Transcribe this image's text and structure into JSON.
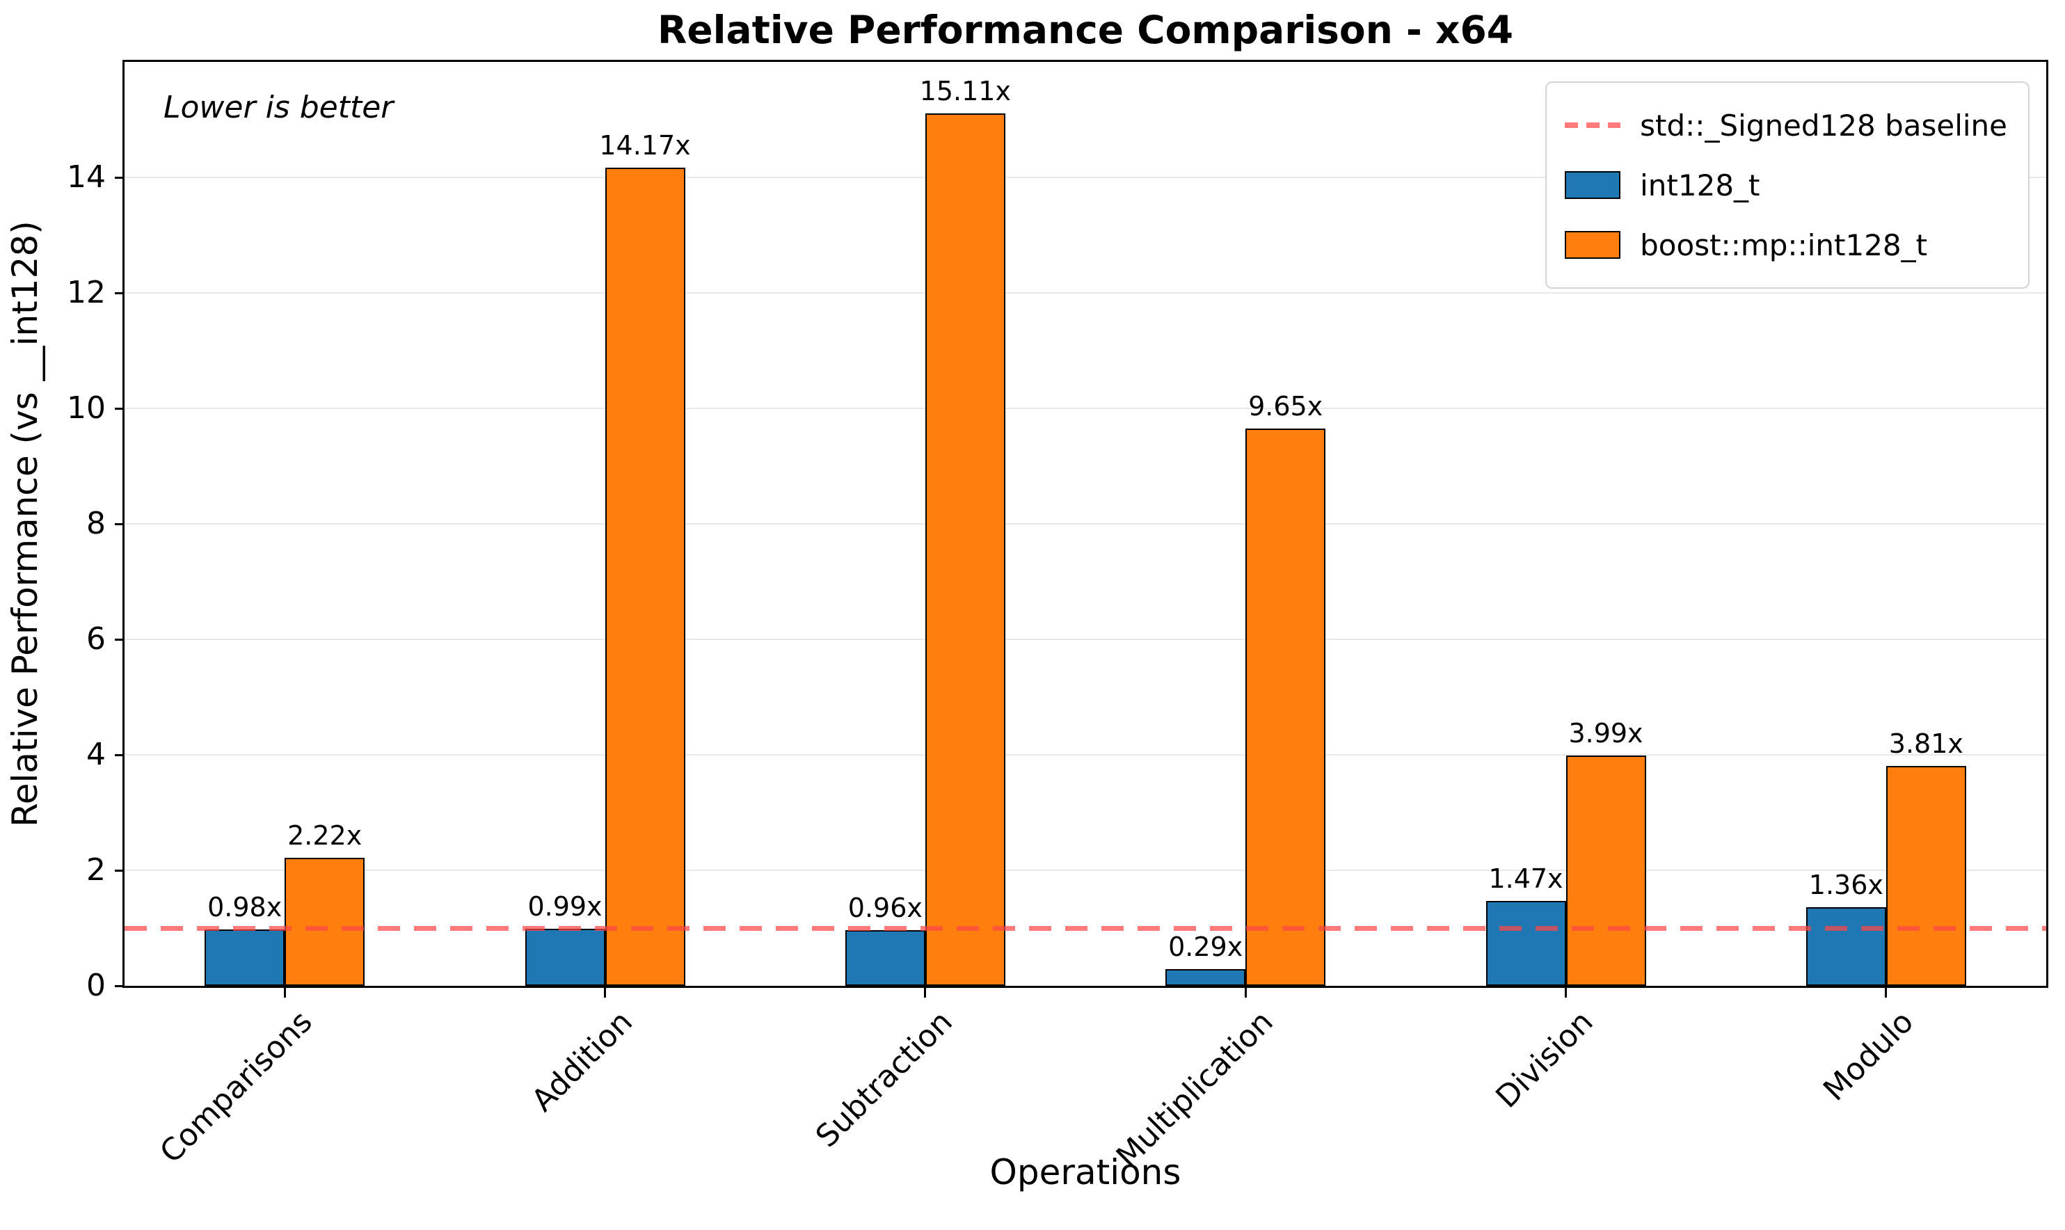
{
  "chart_data": {
    "type": "bar",
    "title": "Relative Performance Comparison - x64",
    "xlabel": "Operations",
    "ylabel": "Relative Performance (vs __int128)",
    "annotation": "Lower is better",
    "categories": [
      "Comparisons",
      "Addition",
      "Subtraction",
      "Multiplication",
      "Division",
      "Modulo"
    ],
    "series": [
      {
        "name": "int128_t",
        "color": "#1f77b4",
        "values": [
          0.98,
          0.99,
          0.96,
          0.29,
          1.47,
          1.36
        ],
        "labels": [
          "0.98x",
          "0.99x",
          "0.96x",
          "0.29x",
          "1.47x",
          "1.36x"
        ]
      },
      {
        "name": "boost::mp::int128_t",
        "color": "#ff7f0e",
        "values": [
          2.22,
          14.17,
          15.11,
          9.65,
          3.99,
          3.81
        ],
        "labels": [
          "2.22x",
          "14.17x",
          "15.11x",
          "9.65x",
          "3.99x",
          "3.81x"
        ]
      }
    ],
    "baseline": {
      "value": 1.0,
      "label": "std::_Signed128 baseline",
      "color": "#ff4646"
    },
    "yticks": [
      0,
      2,
      4,
      6,
      8,
      10,
      12,
      14
    ],
    "ylim": [
      0,
      16
    ],
    "grid": true,
    "legend_position": "upper right"
  }
}
